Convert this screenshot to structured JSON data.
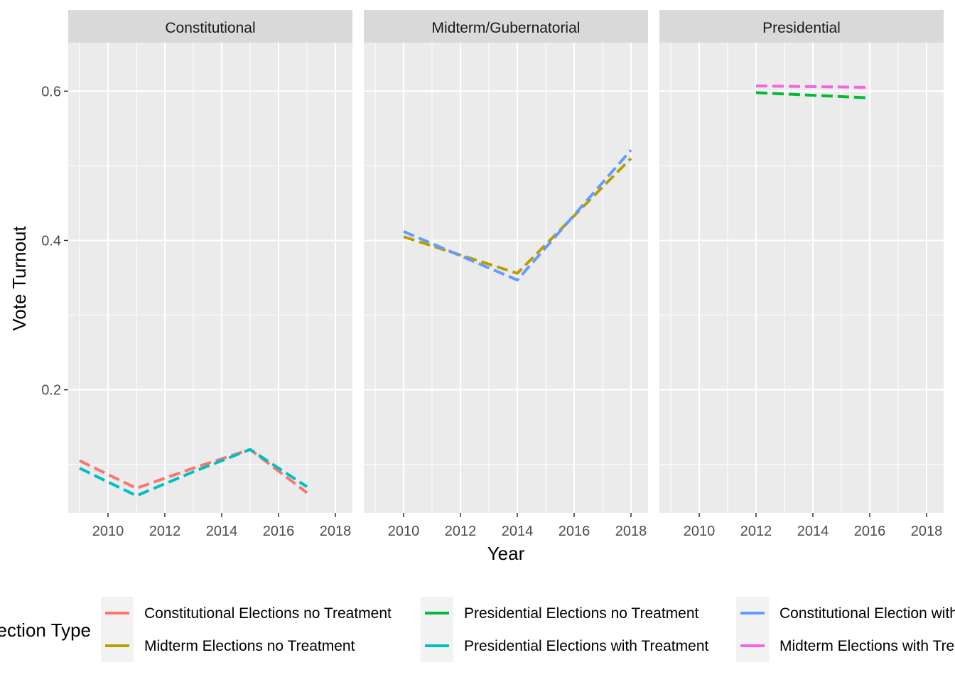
{
  "chart_data": {
    "type": "line",
    "xlabel": "Year",
    "ylabel": "Vote Turnout",
    "xlim": [
      2008.6,
      2018.6
    ],
    "ylim": [
      0.035,
      0.665
    ],
    "x_ticks": [
      2010,
      2012,
      2014,
      2016,
      2018
    ],
    "x_tick_labels": [
      "2010",
      "2012",
      "2014",
      "2016",
      "2018"
    ],
    "y_ticks": [
      0.2,
      0.4,
      0.6
    ],
    "y_tick_labels": [
      "0.2",
      "0.4",
      "0.6"
    ],
    "grid": true,
    "line_style": "dashed",
    "legend": {
      "title": "Election Type",
      "position": "bottom",
      "entries": [
        {
          "label": "Constitutional Elections no Treatment",
          "color": "#F8766D"
        },
        {
          "label": "Midterm Elections no Treatment",
          "color": "#B79F00"
        },
        {
          "label": "Presidential Elections no Treatment",
          "color": "#00BA38"
        },
        {
          "label": "Presidential Elections with Treatment",
          "color": "#00BFC4"
        },
        {
          "label": "Constitutional Election with Treatment",
          "color": "#619CFF"
        },
        {
          "label": "Midterm Elections with Treatment",
          "color": "#F564E3"
        }
      ]
    },
    "facets": [
      {
        "label": "Constitutional",
        "series": [
          {
            "name": "Constitutional Elections no Treatment",
            "color": "#F8766D",
            "x": [
              2009,
              2011,
              2013,
              2015,
              2017
            ],
            "y": [
              0.105,
              0.068,
              0.095,
              0.12,
              0.062
            ]
          },
          {
            "name": "Presidential Elections with Treatment",
            "color": "#00BFC4",
            "x": [
              2009,
              2011,
              2013,
              2015,
              2017
            ],
            "y": [
              0.095,
              0.058,
              0.09,
              0.12,
              0.07
            ]
          }
        ]
      },
      {
        "label": "Midterm/Gubernatorial",
        "series": [
          {
            "name": "Midterm Elections no Treatment",
            "color": "#B79F00",
            "x": [
              2010,
              2014,
              2018
            ],
            "y": [
              0.405,
              0.356,
              0.51
            ]
          },
          {
            "name": "Constitutional Election with Treatment",
            "color": "#619CFF",
            "x": [
              2010,
              2014,
              2018
            ],
            "y": [
              0.412,
              0.347,
              0.521
            ]
          }
        ]
      },
      {
        "label": "Presidential",
        "series": [
          {
            "name": "Presidential Elections no Treatment",
            "color": "#00BA38",
            "x": [
              2012,
              2016
            ],
            "y": [
              0.598,
              0.591
            ]
          },
          {
            "name": "Midterm Elections with Treatment",
            "color": "#F564E3",
            "x": [
              2012,
              2016
            ],
            "y": [
              0.607,
              0.605
            ]
          }
        ]
      }
    ]
  }
}
